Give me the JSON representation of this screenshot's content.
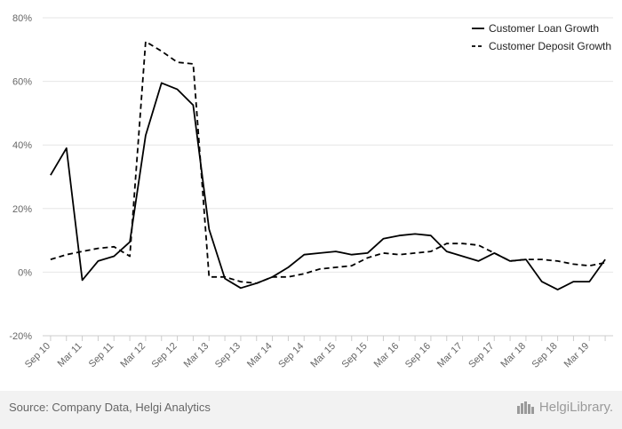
{
  "chart_data": {
    "type": "line",
    "title": "",
    "xlabel": "",
    "ylabel": "",
    "ylim": [
      -20,
      80
    ],
    "yticks": [
      "80%",
      "60%",
      "40%",
      "20%",
      "0%",
      "-20%"
    ],
    "ytick_values": [
      80,
      60,
      40,
      20,
      0,
      -20
    ],
    "grid": true,
    "legend_position": "top-right",
    "x": [
      "Sep 10",
      "Dec 10",
      "Mar 11",
      "Jun 11",
      "Sep 11",
      "Dec 11",
      "Mar 12",
      "Jun 12",
      "Sep 12",
      "Dec 12",
      "Mar 13",
      "Jun 13",
      "Sep 13",
      "Dec 13",
      "Mar 14",
      "Jun 14",
      "Sep 14",
      "Dec 14",
      "Mar 15",
      "Jun 15",
      "Sep 15",
      "Dec 15",
      "Mar 16",
      "Jun 16",
      "Sep 16",
      "Dec 16",
      "Mar 17",
      "Jun 17",
      "Sep 17",
      "Dec 17",
      "Mar 18",
      "Jun 18",
      "Sep 18",
      "Dec 18",
      "Mar 19",
      "Jun 19"
    ],
    "xtick_labels": [
      "Sep 10",
      "Mar 11",
      "Sep 11",
      "Mar 12",
      "Sep 12",
      "Mar 13",
      "Sep 13",
      "Mar 14",
      "Sep 14",
      "Mar 15",
      "Sep 15",
      "Mar 16",
      "Sep 16",
      "Mar 17",
      "Sep 17",
      "Mar 18",
      "Sep 18",
      "Mar 19"
    ],
    "series": [
      {
        "name": "Customer Loan Growth",
        "style": "solid",
        "color": "#000000",
        "values": [
          30.5,
          39.0,
          -2.5,
          3.5,
          5.0,
          9.5,
          43.0,
          59.5,
          57.5,
          52.5,
          13.5,
          -2.0,
          -5.0,
          -3.5,
          -1.5,
          1.5,
          5.5,
          6.0,
          6.5,
          5.5,
          6.0,
          10.5,
          11.5,
          12.0,
          11.5,
          6.5,
          5.0,
          3.5,
          6.0,
          3.5,
          4.0,
          -3.0,
          -5.5,
          -3.0,
          -3.0,
          4.0
        ]
      },
      {
        "name": "Customer Deposit Growth",
        "style": "dashed",
        "color": "#000000",
        "values": [
          4.0,
          5.5,
          6.5,
          7.5,
          8.0,
          5.0,
          72.5,
          69.5,
          66.0,
          65.5,
          -1.5,
          -1.5,
          -3.0,
          -3.5,
          -1.5,
          -1.5,
          -0.5,
          1.0,
          1.5,
          2.0,
          4.5,
          6.0,
          5.5,
          6.0,
          6.5,
          9.0,
          9.0,
          8.5,
          6.0,
          3.5,
          4.0,
          4.0,
          3.5,
          2.5,
          2.0,
          3.0
        ]
      }
    ]
  },
  "footer": {
    "source": "Source: Company Data, Helgi Analytics",
    "brand": "HelgiLibrary."
  }
}
